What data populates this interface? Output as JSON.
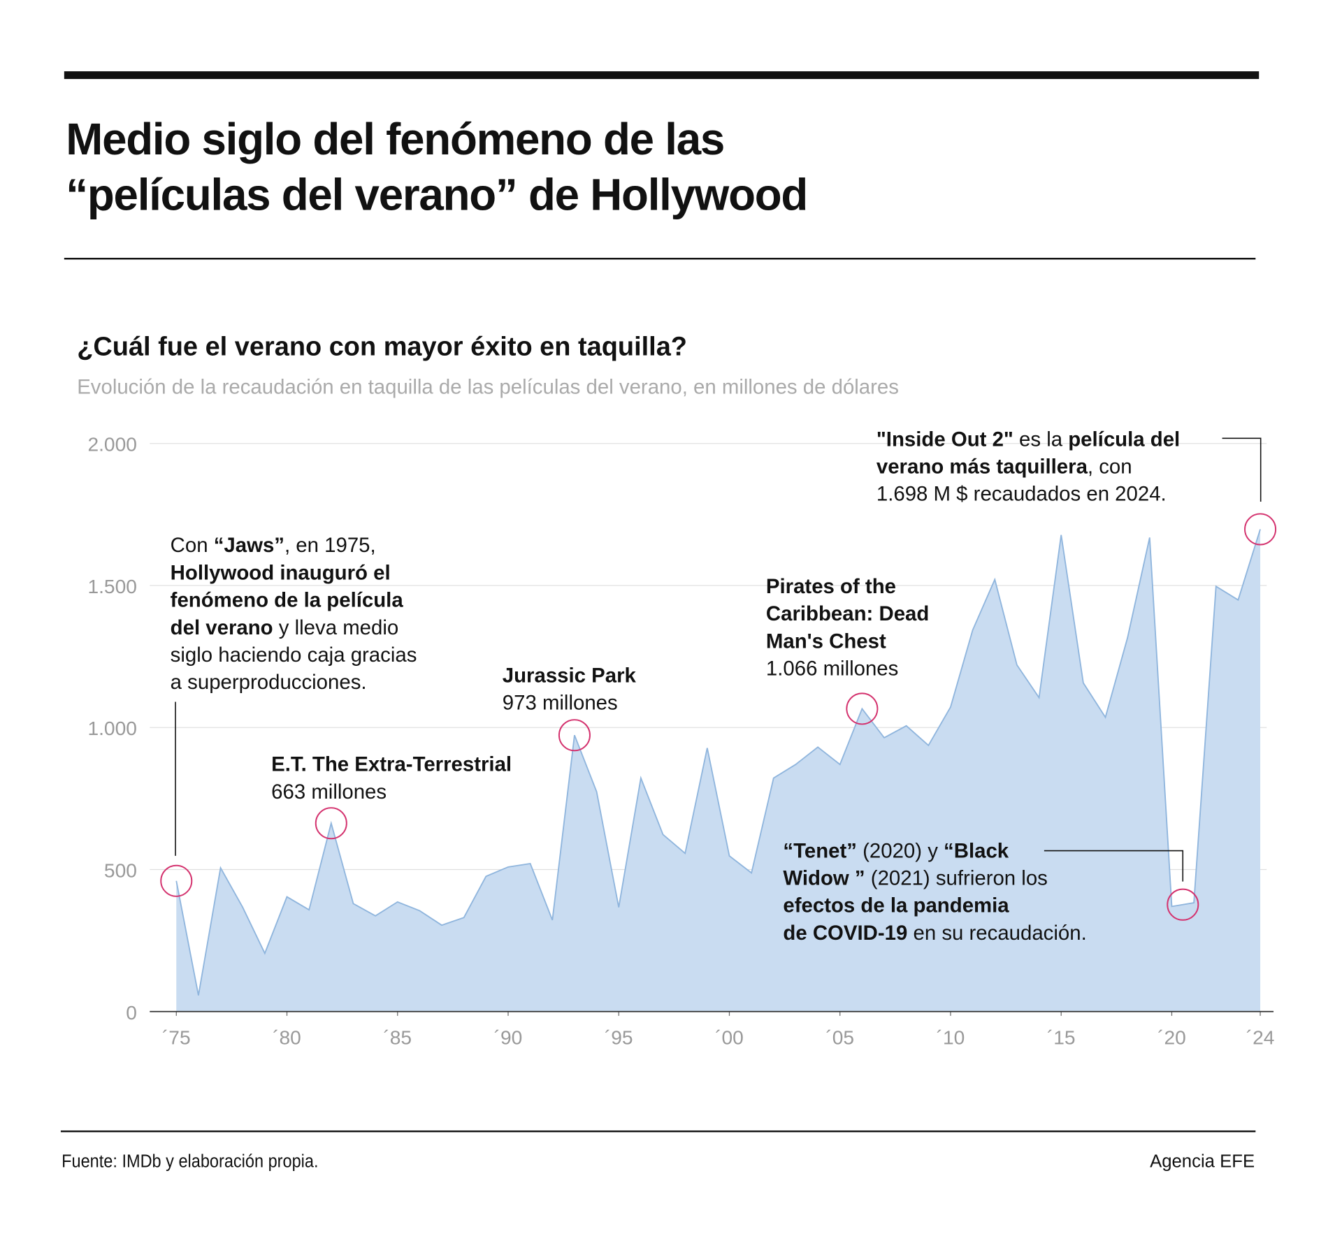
{
  "chart_data": {
    "type": "area",
    "title": [
      "Medio siglo del fenómeno de las",
      "“películas del verano” de Hollywood"
    ],
    "question": "¿Cuál fue el verano con mayor éxito en taquilla?",
    "subtitle": "Evolución de la recaudación en taquilla de las películas del verano, en millones de dólares",
    "x": [
      1975,
      1976,
      1977,
      1978,
      1979,
      1980,
      1981,
      1982,
      1983,
      1984,
      1985,
      1986,
      1987,
      1988,
      1989,
      1990,
      1991,
      1992,
      1993,
      1994,
      1995,
      1996,
      1997,
      1998,
      1999,
      2000,
      2001,
      2002,
      2003,
      2004,
      2005,
      2006,
      2007,
      2008,
      2009,
      2010,
      2011,
      2012,
      2013,
      2014,
      2015,
      2016,
      2017,
      2018,
      2019,
      2020,
      2021,
      2022,
      2023,
      2024
    ],
    "values": [
      460,
      57,
      506,
      367,
      205,
      404,
      358,
      663,
      380,
      337,
      386,
      355,
      304,
      331,
      476,
      509,
      521,
      322,
      973,
      774,
      367,
      822,
      623,
      557,
      928,
      548,
      488,
      822,
      870,
      931,
      870,
      1066,
      964,
      1006,
      937,
      1072,
      1343,
      1521,
      1220,
      1105,
      1678,
      1157,
      1036,
      1316,
      1669,
      370,
      383,
      1497,
      1449,
      1698
    ],
    "color": "#c9dcf1",
    "line_color": "#8fb5dd",
    "highlight_color": "#d4326e",
    "xlim": [
      1973.8,
      2024.6
    ],
    "xticks": [
      {
        "value": 1975,
        "label": "´75"
      },
      {
        "value": 1980,
        "label": "´80"
      },
      {
        "value": 1985,
        "label": "´85"
      },
      {
        "value": 1990,
        "label": "´90"
      },
      {
        "value": 1995,
        "label": "´95"
      },
      {
        "value": 2000,
        "label": "´00"
      },
      {
        "value": 2005,
        "label": "´05"
      },
      {
        "value": 2010,
        "label": "´10"
      },
      {
        "value": 2015,
        "label": "´15"
      },
      {
        "value": 2020,
        "label": "´20"
      },
      {
        "value": 2024,
        "label": "´24"
      }
    ],
    "ylim": [
      0,
      2000
    ],
    "yticks": [
      0,
      500,
      {
        "value": 1000,
        "label": "1.000"
      },
      {
        "value": 1500,
        "label": "1.500"
      },
      {
        "value": 2000,
        "label": "2.000"
      }
    ],
    "grid": true,
    "annotations": [
      {
        "lines": [
          [
            {
              "text": "Con ",
              "bold": false
            },
            {
              "text": "“Jaws”",
              "bold": true
            },
            {
              "text": ", en 1975,",
              "bold": false
            }
          ],
          [
            {
              "text": "Hollywood inauguró el",
              "bold": true
            }
          ],
          [
            {
              "text": "fenómeno de la película",
              "bold": true
            }
          ],
          [
            {
              "text": "del verano",
              "bold": true
            },
            {
              "text": " y lleva medio",
              "bold": false
            }
          ],
          [
            {
              "text": "siglo haciendo caja gracias",
              "bold": false
            }
          ],
          [
            {
              "text": "a superproducciones.",
              "bold": false
            }
          ]
        ]
      },
      {
        "lines": [
          [
            {
              "text": "E.T. The Extra-Terrestrial",
              "bold": true
            }
          ],
          [
            {
              "text": "663 millones",
              "bold": false
            }
          ]
        ]
      },
      {
        "lines": [
          [
            {
              "text": "Jurassic Park",
              "bold": true
            }
          ],
          [
            {
              "text": "973 millones",
              "bold": false
            }
          ]
        ]
      },
      {
        "lines": [
          [
            {
              "text": "Pirates of the",
              "bold": true
            }
          ],
          [
            {
              "text": "Caribbean: Dead",
              "bold": true
            }
          ],
          [
            {
              "text": "Man's Chest",
              "bold": true
            }
          ],
          [
            {
              "text": "1.066 millones",
              "bold": false
            }
          ]
        ]
      },
      {
        "lines": [
          [
            {
              "text": "\"Inside Out 2\"",
              "bold": true
            },
            {
              "text": " es la ",
              "bold": false
            },
            {
              "text": "película del",
              "bold": true
            }
          ],
          [
            {
              "text": "verano más taquillera",
              "bold": true
            },
            {
              "text": ", con",
              "bold": false
            }
          ],
          [
            {
              "text": "1.698 M $ recaudados en 2024.",
              "bold": false
            }
          ]
        ]
      },
      {
        "lines": [
          [
            {
              "text": "“Tenet”",
              "bold": true
            },
            {
              "text": " (2020) y ",
              "bold": false
            },
            {
              "text": "“Black",
              "bold": true
            }
          ],
          [
            {
              "text": "Widow ”",
              "bold": true
            },
            {
              "text": " (2021) sufrieron los",
              "bold": false
            }
          ],
          [
            {
              "text": "efectos de la pandemia",
              "bold": true
            }
          ],
          [
            {
              "text": "de COVID-19",
              "bold": true
            },
            {
              "text": " en su recaudación.",
              "bold": false
            }
          ]
        ]
      }
    ],
    "source": "Fuente: IMDb y elaboración propia.",
    "credit": "Agencia EFE"
  }
}
